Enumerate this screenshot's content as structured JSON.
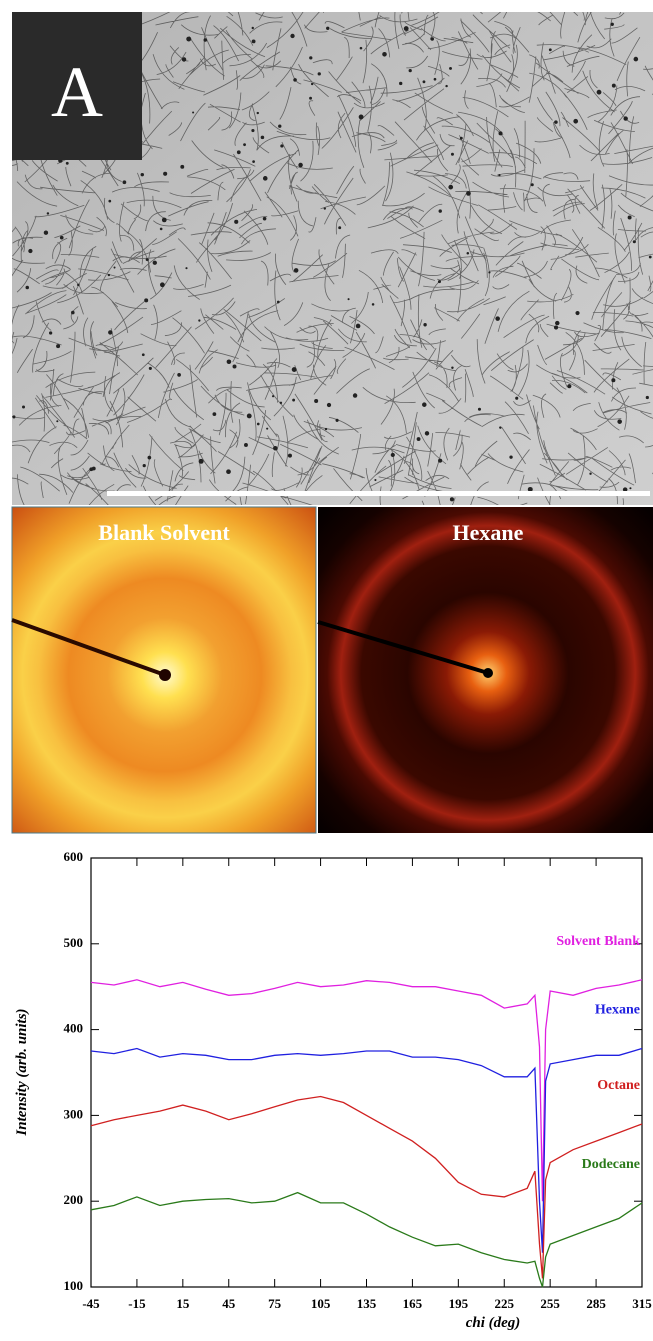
{
  "panels": {
    "label": "A",
    "saxs_titles": [
      "Blank Solvent",
      "Hexane"
    ]
  },
  "chart_data": {
    "type": "line",
    "x_label": "chi (deg)",
    "y_label": "Intensity (arb. units)",
    "x": [
      -45,
      -30,
      -15,
      0,
      15,
      30,
      45,
      60,
      75,
      90,
      105,
      120,
      135,
      150,
      165,
      180,
      195,
      210,
      225,
      240,
      245,
      248,
      250,
      252,
      255,
      270,
      285,
      300,
      315
    ],
    "series": [
      {
        "name": "Solvent Blank",
        "color": "#e020e0",
        "values": [
          455,
          452,
          458,
          450,
          455,
          447,
          440,
          442,
          448,
          455,
          450,
          452,
          457,
          455,
          450,
          450,
          445,
          440,
          425,
          430,
          440,
          380,
          200,
          400,
          445,
          440,
          448,
          452,
          458
        ]
      },
      {
        "name": "Hexane",
        "color": "#2020e0",
        "values": [
          375,
          372,
          378,
          368,
          372,
          370,
          365,
          365,
          370,
          372,
          370,
          372,
          375,
          375,
          368,
          368,
          365,
          358,
          345,
          345,
          355,
          200,
          140,
          340,
          360,
          365,
          370,
          370,
          378
        ]
      },
      {
        "name": "Octane",
        "color": "#d02020",
        "values": [
          288,
          295,
          300,
          305,
          312,
          305,
          295,
          302,
          310,
          318,
          322,
          315,
          300,
          285,
          270,
          250,
          222,
          208,
          205,
          215,
          235,
          150,
          110,
          225,
          245,
          260,
          270,
          280,
          290
        ]
      },
      {
        "name": "Dodecane",
        "color": "#2a7a1a",
        "values": [
          190,
          195,
          205,
          195,
          200,
          202,
          203,
          198,
          200,
          210,
          198,
          198,
          185,
          170,
          158,
          148,
          150,
          140,
          132,
          128,
          130,
          110,
          100,
          135,
          150,
          160,
          170,
          180,
          198
        ]
      }
    ],
    "xlim": [
      -45,
      315
    ],
    "xticks": [
      -45,
      -15,
      15,
      45,
      75,
      105,
      135,
      165,
      195,
      225,
      255,
      285,
      315
    ],
    "ylim": [
      100,
      600
    ],
    "yticks": [
      100,
      200,
      300,
      400,
      500,
      600
    ]
  }
}
